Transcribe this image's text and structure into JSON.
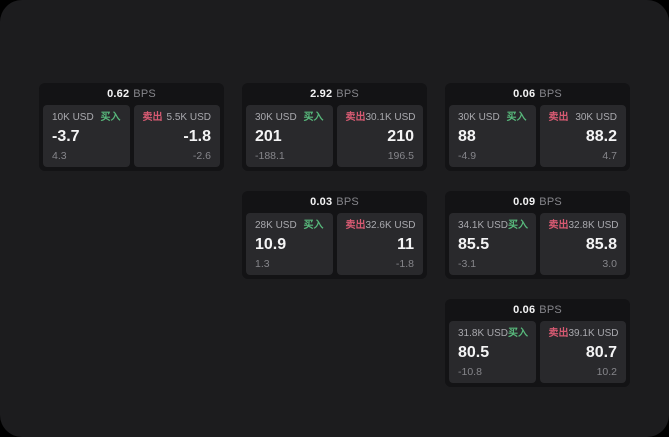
{
  "labels": {
    "bps_suffix": "BPS",
    "buy": "买入",
    "sell": "卖出"
  },
  "colors": {
    "background": "#1c1c1e",
    "card_bg": "#131315",
    "panel_bg": "#29292c",
    "value_text": "#f4f4f5",
    "label_text": "#a9a9ae",
    "sub_text": "#86868b",
    "buy_green": "#58b97c",
    "sell_red": "#d75a72"
  },
  "cards": [
    {
      "bps": "0.62",
      "buy": {
        "amount": "10K USD",
        "value": "-3.7",
        "sub": "4.3"
      },
      "sell": {
        "amount": "5.5K USD",
        "value": "-1.8",
        "sub": "-2.6"
      }
    },
    {
      "bps": "2.92",
      "buy": {
        "amount": "30K USD",
        "value": "201",
        "sub": "-188.1"
      },
      "sell": {
        "amount": "30.1K USD",
        "value": "210",
        "sub": "196.5"
      }
    },
    {
      "bps": "0.06",
      "buy": {
        "amount": "30K USD",
        "value": "88",
        "sub": "-4.9"
      },
      "sell": {
        "amount": "30K USD",
        "value": "88.2",
        "sub": "4.7"
      }
    },
    {
      "bps": "0.03",
      "buy": {
        "amount": "28K USD",
        "value": "10.9",
        "sub": "1.3"
      },
      "sell": {
        "amount": "32.6K USD",
        "value": "11",
        "sub": "-1.8"
      }
    },
    {
      "bps": "0.09",
      "buy": {
        "amount": "34.1K USD",
        "value": "85.5",
        "sub": "-3.1"
      },
      "sell": {
        "amount": "32.8K USD",
        "value": "85.8",
        "sub": "3.0"
      }
    },
    {
      "bps": "0.06",
      "buy": {
        "amount": "31.8K USD",
        "value": "80.5",
        "sub": "-10.8"
      },
      "sell": {
        "amount": "39.1K USD",
        "value": "80.7",
        "sub": "10.2"
      }
    }
  ]
}
